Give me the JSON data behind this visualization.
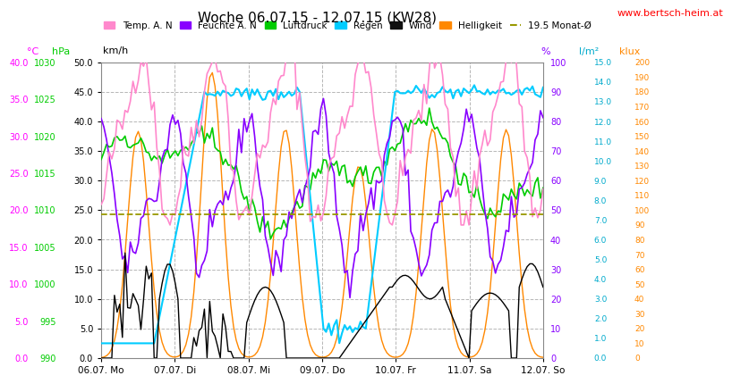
{
  "title": "Woche 06.07.15 - 12.07.15 (KW28)",
  "url": "www.bertsch-heim.at",
  "background": "#ffffff",
  "plot_bg": "#ffffff",
  "left_axes": {
    "celsius": {
      "label": "°C",
      "color": "#ff00ff",
      "min": 0.0,
      "max": 40.0
    },
    "hpa": {
      "label": "hPa",
      "color": "#00cc00",
      "min": 990,
      "max": 1030
    },
    "kmh": {
      "label": "km/h",
      "color": "#000000",
      "min": 0.0,
      "max": 50.0
    }
  },
  "right_axes": {
    "percent": {
      "label": "%",
      "color": "#8800ff",
      "min": 0,
      "max": 100
    },
    "lm2": {
      "label": "l/m²",
      "color": "#00ccff",
      "min": 0.0,
      "max": 15.0
    },
    "klux": {
      "label": "klux",
      "color": "#ff8800",
      "min": 0,
      "max": 200
    }
  },
  "x_ticks": [
    0,
    1,
    2,
    3,
    4,
    5,
    6
  ],
  "x_labels": [
    "06.07. Mo",
    "07.07. Di",
    "08.07. Mi",
    "09.07. Do",
    "10.07. Fr",
    "11.07. Sa",
    "12.07. So"
  ],
  "n_points": 168,
  "grid_color": "#aaaaaa",
  "dashed_line_celsius": 19.5,
  "dashed_line_color": "#999900"
}
